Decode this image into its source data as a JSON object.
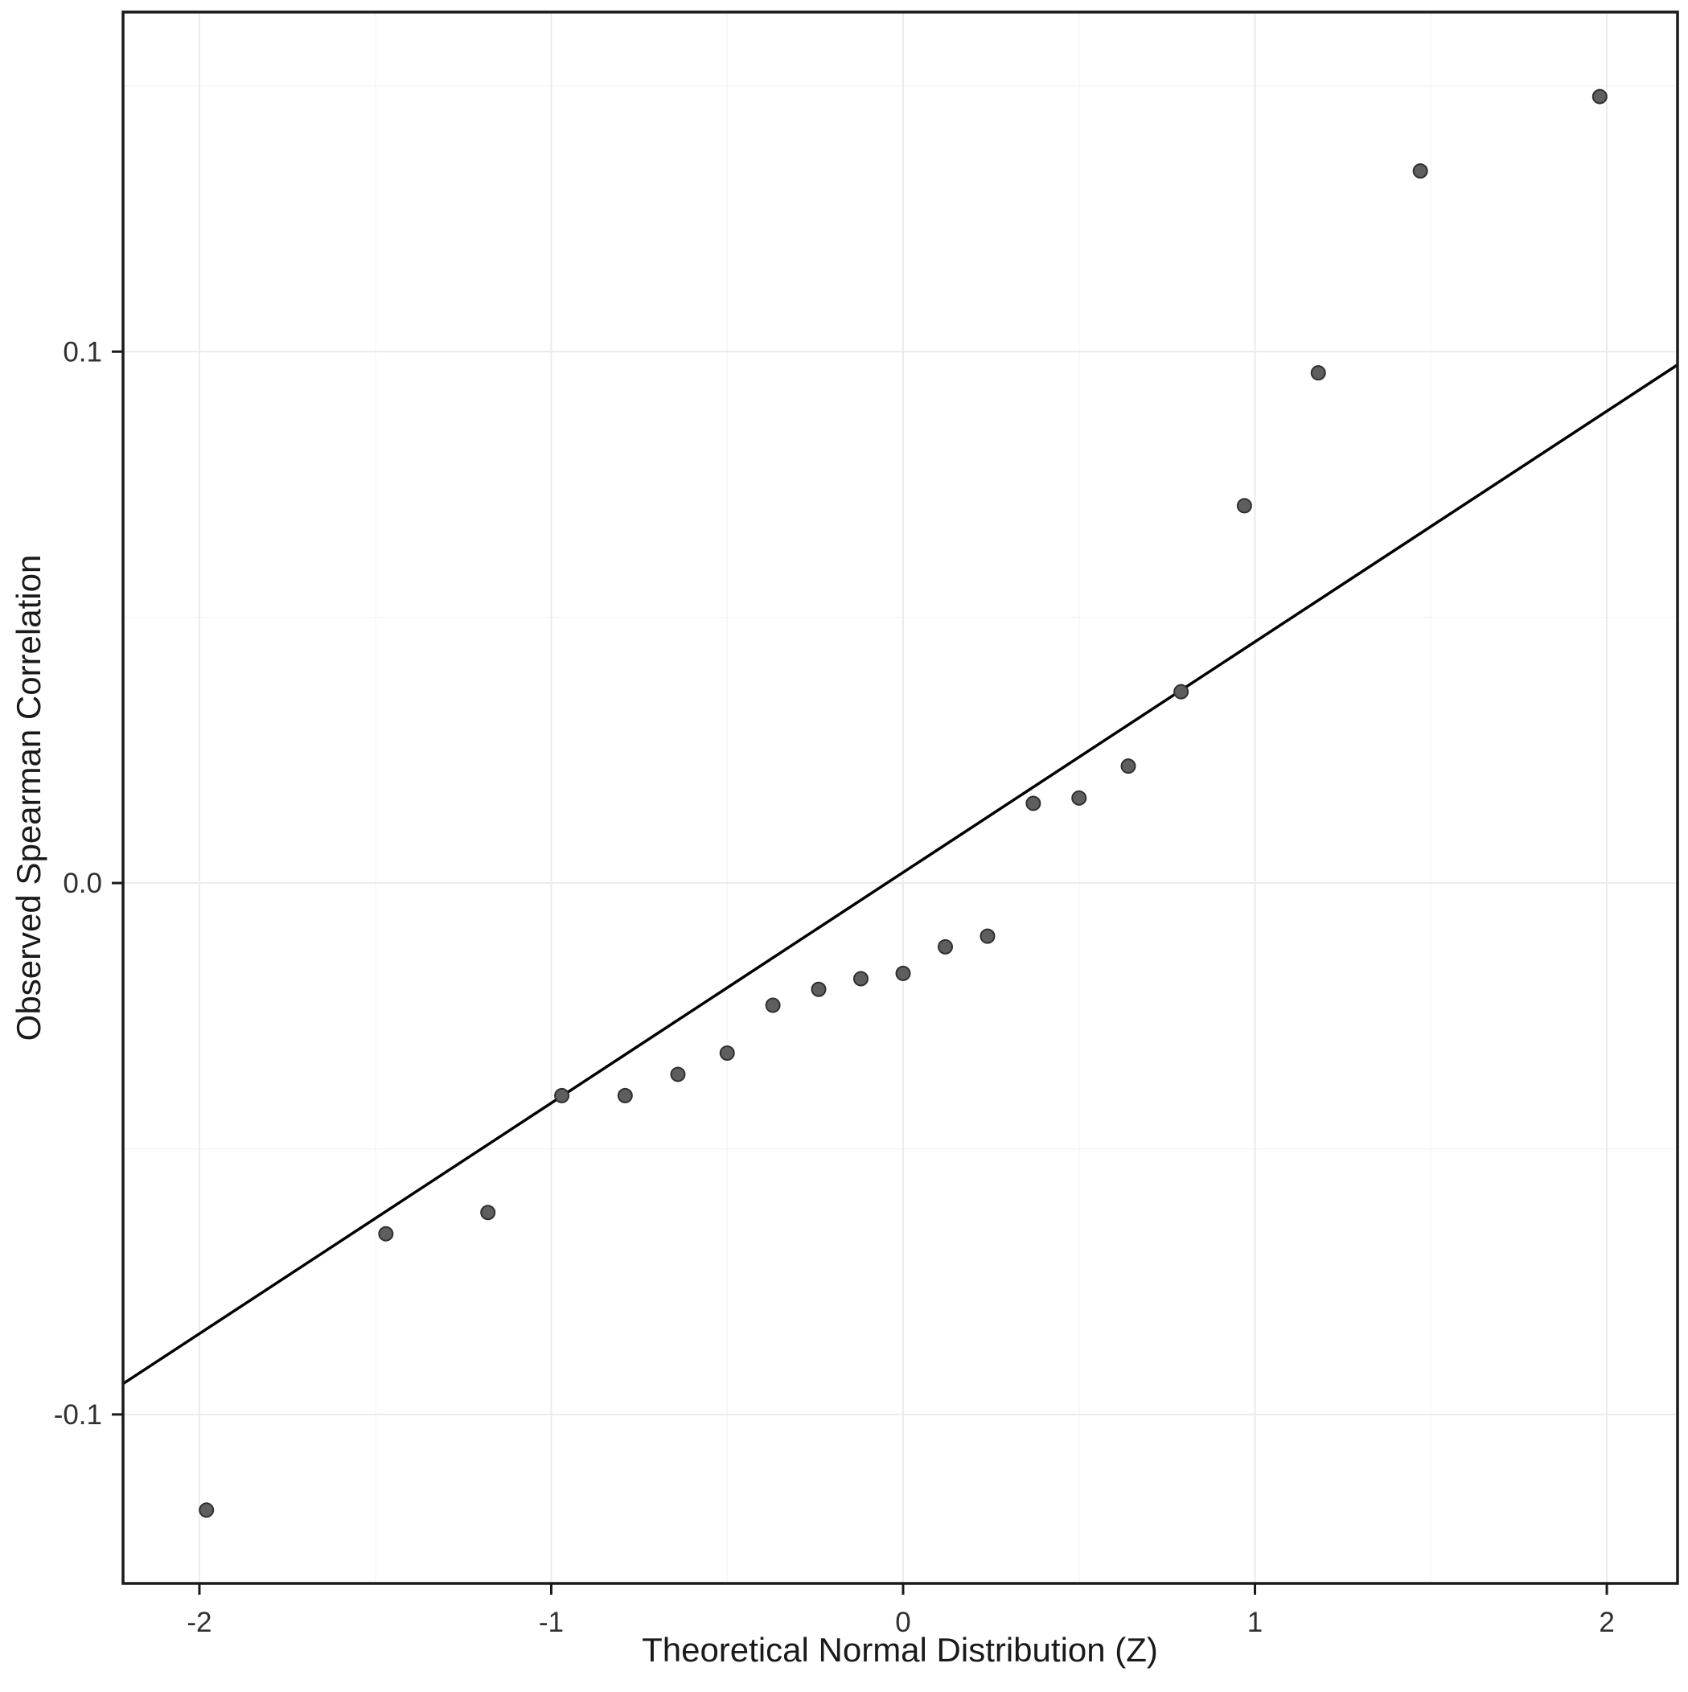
{
  "chart_data": {
    "type": "scatter",
    "title": "",
    "xlabel": "Theoretical Normal Distribution (Z)",
    "ylabel": "Observed Spearman Correlation",
    "xlim": [
      -2.217,
      2.201
    ],
    "ylim": [
      -0.1318,
      0.1639
    ],
    "x_ticks": {
      "values": [
        -2,
        -1,
        0,
        1,
        2
      ],
      "labels": [
        "-2",
        "-1",
        "0",
        "1",
        "2"
      ]
    },
    "y_ticks": {
      "values": [
        -0.1,
        0.0,
        0.1
      ],
      "labels": [
        "-0.1",
        "0.0",
        "0.1"
      ]
    },
    "x_minor": [
      -1.5,
      -0.5,
      0.5,
      1.5
    ],
    "y_minor": [
      -0.05,
      0.05,
      0.15
    ],
    "grid": true,
    "legend": "none",
    "points": [
      [
        -1.98,
        -0.118
      ],
      [
        -1.47,
        -0.066
      ],
      [
        -1.18,
        -0.062
      ],
      [
        -0.97,
        -0.04
      ],
      [
        -0.79,
        -0.04
      ],
      [
        -0.64,
        -0.036
      ],
      [
        -0.5,
        -0.032
      ],
      [
        -0.37,
        -0.023
      ],
      [
        -0.24,
        -0.02
      ],
      [
        -0.12,
        -0.018
      ],
      [
        0.0,
        -0.017
      ],
      [
        0.12,
        -0.012
      ],
      [
        0.24,
        -0.01
      ],
      [
        0.37,
        0.015
      ],
      [
        0.5,
        0.016
      ],
      [
        0.64,
        0.022
      ],
      [
        0.79,
        0.036
      ],
      [
        0.97,
        0.071
      ],
      [
        1.18,
        0.096
      ],
      [
        1.47,
        0.134
      ],
      [
        1.98,
        0.148
      ]
    ],
    "reference_line": {
      "slope": 0.0434,
      "intercept": 0.002
    },
    "style": {
      "point_fill": "#5E5E5E",
      "point_stroke": "#303030",
      "point_radius": 8.5,
      "line_color": "#000000",
      "line_width": 3.5,
      "grid_major_color": "#EBEBEB",
      "grid_minor_color": "#F6F6F6",
      "panel_border_color": "#1A1A1A",
      "background": "#FFFFFF",
      "tick_color": "#1A1A1A"
    }
  }
}
